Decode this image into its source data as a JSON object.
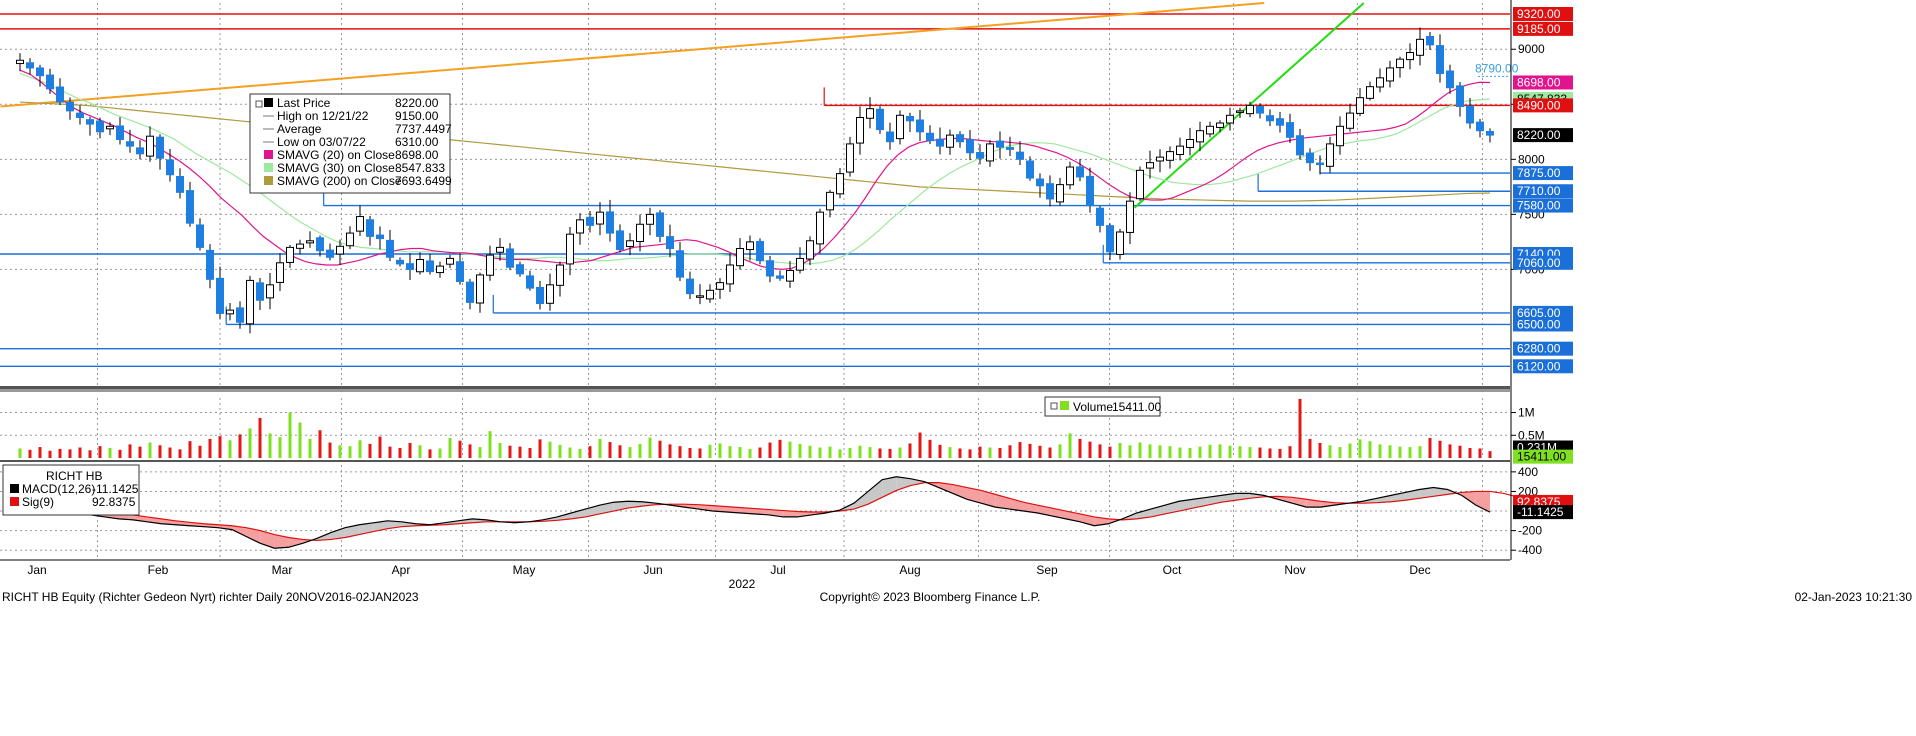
{
  "colors": {
    "up": "#000000",
    "down": "#1f7fe0",
    "sma20": "#e0148c",
    "sma30": "#9fe89f",
    "sma200": "#b09a40",
    "hline_red": "#e01010",
    "hline_blue": "#1a6fd8",
    "trend_orange": "#f4a020",
    "trend_green": "#22dd11",
    "vol_up": "#7ee020",
    "vol_down": "#e01818",
    "macd": "#000000",
    "sig": "#e01010",
    "hist_pos": "#c8c8c8",
    "hist_neg": "#f4a0a0"
  },
  "chart_data": [
    {
      "type": "candlestick",
      "panel": "price",
      "ylim": [
        5950,
        9420
      ],
      "y_ticks": [
        7000,
        7500,
        8000,
        8500,
        9000
      ],
      "y_tick_labels": [
        "7000",
        "7500",
        "8000",
        "8500",
        "9000"
      ],
      "price_tags": [
        {
          "label": "9320.00",
          "value": 9320,
          "color": "#e01010"
        },
        {
          "label": "9185.00",
          "value": 9185,
          "color": "#e01010"
        },
        {
          "label": "8698.00",
          "value": 8698,
          "color": "#e0148c"
        },
        {
          "label": "8547.833",
          "value": 8548,
          "color": "#9fe89f"
        },
        {
          "label": "8490.00",
          "value": 8490,
          "color": "#e01010"
        },
        {
          "label": "8220.00",
          "value": 8220,
          "color": "#000000"
        },
        {
          "label": "7875.00",
          "value": 7875,
          "color": "#1a6fd8"
        },
        {
          "label": "7710.00",
          "value": 7710,
          "color": "#1a6fd8"
        },
        {
          "label": "7580.00",
          "value": 7580,
          "color": "#1a6fd8"
        },
        {
          "label": "7140.00",
          "value": 7140,
          "color": "#1a6fd8"
        },
        {
          "label": "7060.00",
          "value": 7060,
          "color": "#1a6fd8"
        },
        {
          "label": "6605.00",
          "value": 6605,
          "color": "#1a6fd8"
        },
        {
          "label": "6500.00",
          "value": 6500,
          "color": "#1a6fd8"
        },
        {
          "label": "6280.00",
          "value": 6280,
          "color": "#1a6fd8"
        },
        {
          "label": "6120.00",
          "value": 6120,
          "color": "#1a6fd8"
        }
      ],
      "annotation": {
        "label": "8790.00",
        "value": 8790
      },
      "legend": [
        {
          "label": "Last Price",
          "value": "8220.00",
          "swatch": "#000000"
        },
        {
          "label": "High on 12/21/22",
          "value": "9150.00",
          "swatch": ""
        },
        {
          "label": "Average",
          "value": "7737.4497",
          "swatch": ""
        },
        {
          "label": "Low on 03/07/22",
          "value": "6310.00",
          "swatch": ""
        },
        {
          "label": "SMAVG (20)  on Close",
          "value": "8698.00",
          "swatch": "#e0148c"
        },
        {
          "label": "SMAVG (30)  on Close",
          "value": "8547.833",
          "swatch": "#9fe89f"
        },
        {
          "label": "SMAVG (200)  on Close",
          "value": "7693.6499",
          "swatch": "#b09a40"
        }
      ],
      "horizontal_lines": [
        {
          "value": 9320,
          "color": "#e01010",
          "from_month": 0
        },
        {
          "value": 9185,
          "color": "#e01010",
          "from_month": 0
        },
        {
          "value": 8490,
          "color": "#e01010",
          "from_month": 6.35
        },
        {
          "value": 7875,
          "color": "#1a6fd8",
          "from_month": 10.2
        },
        {
          "value": 7710,
          "color": "#1a6fd8",
          "from_month": 9.7
        },
        {
          "value": 7580,
          "color": "#1a6fd8",
          "from_month": 2.35
        },
        {
          "value": 7140,
          "color": "#1a6fd8",
          "from_month": 0
        },
        {
          "value": 7060,
          "color": "#1a6fd8",
          "from_month": 8.45
        },
        {
          "value": 6605,
          "color": "#1a6fd8",
          "from_month": 3.75
        },
        {
          "value": 6500,
          "color": "#1a6fd8",
          "from_month": 1.55
        },
        {
          "value": 6280,
          "color": "#1a6fd8",
          "from_month": 0
        },
        {
          "value": 6120,
          "color": "#1a6fd8",
          "from_month": 0
        }
      ],
      "trendlines": [
        {
          "from": [
            -0.3,
            8480
          ],
          "to": [
            9.75,
            9420
          ],
          "color": "#f4a020"
        },
        {
          "from": [
            8.7,
            7560
          ],
          "to": [
            10.55,
            9420
          ],
          "color": "#22dd11"
        }
      ],
      "closes": [
        8900,
        8830,
        8760,
        8640,
        8520,
        8440,
        8380,
        8320,
        8250,
        8300,
        8180,
        8120,
        8050,
        8210,
        8010,
        7860,
        7700,
        7420,
        7200,
        6910,
        6600,
        6630,
        6520,
        6900,
        6720,
        6860,
        7060,
        7200,
        7230,
        7260,
        7170,
        7110,
        7210,
        7330,
        7480,
        7300,
        7280,
        7110,
        7050,
        7000,
        7090,
        6980,
        7030,
        7100,
        6890,
        6700,
        6950,
        7130,
        7200,
        7020,
        6960,
        6830,
        6690,
        6860,
        7040,
        7320,
        7450,
        7400,
        7520,
        7330,
        7180,
        7260,
        7410,
        7500,
        7300,
        7190,
        6930,
        6780,
        6760,
        6810,
        6880,
        7040,
        7190,
        7250,
        7080,
        6940,
        6920,
        6990,
        7100,
        7260,
        7520,
        7700,
        7870,
        8140,
        8380,
        8460,
        8270,
        8160,
        8400,
        8350,
        8250,
        8170,
        8120,
        8220,
        8160,
        8060,
        8010,
        8140,
        8110,
        8090,
        8000,
        7830,
        7760,
        7640,
        7770,
        7930,
        7840,
        7580,
        7400,
        7160,
        7340,
        7620,
        7900,
        7970,
        8020,
        8070,
        8120,
        8180,
        8260,
        8300,
        8330,
        8400,
        8440,
        8490,
        8420,
        8350,
        8310,
        8200,
        8040,
        7970,
        7960,
        8140,
        8300,
        8420,
        8560,
        8660,
        8740,
        8830,
        8910,
        8970,
        9090,
        9040,
        8780,
        8650,
        8480,
        8330,
        8260,
        8220
      ],
      "sma20": [
        8810,
        8770,
        8700,
        8620,
        8540,
        8470,
        8420,
        8380,
        8340,
        8300,
        8250,
        8200,
        8160,
        8110,
        8050,
        7990,
        7920,
        7840,
        7750,
        7650,
        7570,
        7490,
        7390,
        7300,
        7230,
        7160,
        7110,
        7070,
        7050,
        7040,
        7040,
        7060,
        7080,
        7110,
        7140,
        7160,
        7180,
        7190,
        7190,
        7170,
        7160,
        7150,
        7150,
        7140,
        7120,
        7100,
        7090,
        7090,
        7090,
        7080,
        7070,
        7060,
        7060,
        7070,
        7080,
        7110,
        7140,
        7170,
        7200,
        7210,
        7220,
        7230,
        7260,
        7270,
        7260,
        7230,
        7200,
        7160,
        7110,
        7070,
        7030,
        7010,
        7000,
        7010,
        7050,
        7110,
        7190,
        7290,
        7400,
        7520,
        7660,
        7810,
        7940,
        8040,
        8110,
        8150,
        8170,
        8180,
        8190,
        8190,
        8180,
        8170,
        8160,
        8160,
        8150,
        8140,
        8120,
        8090,
        8060,
        8020,
        7970,
        7910,
        7840,
        7770,
        7710,
        7660,
        7640,
        7630,
        7630,
        7650,
        7690,
        7730,
        7770,
        7820,
        7880,
        7950,
        8020,
        8080,
        8120,
        8150,
        8170,
        8190,
        8200,
        8210,
        8220,
        8230,
        8240,
        8250,
        8260,
        8270,
        8290,
        8320,
        8380,
        8450,
        8530,
        8600,
        8650,
        8680,
        8700,
        8698
      ],
      "sma30": [
        8780,
        8740,
        8700,
        8650,
        8600,
        8550,
        8510,
        8460,
        8410,
        8370,
        8330,
        8290,
        8240,
        8190,
        8120,
        8050,
        7990,
        7930,
        7870,
        7800,
        7730,
        7650,
        7570,
        7490,
        7420,
        7360,
        7300,
        7250,
        7220,
        7200,
        7190,
        7180,
        7170,
        7160,
        7160,
        7160,
        7160,
        7150,
        7140,
        7130,
        7120,
        7110,
        7100,
        7100,
        7100,
        7110,
        7110,
        7100,
        7090,
        7080,
        7080,
        7090,
        7100,
        7100,
        7110,
        7120,
        7130,
        7140,
        7140,
        7140,
        7130,
        7120,
        7100,
        7080,
        7070,
        7060,
        7050,
        7050,
        7060,
        7080,
        7120,
        7180,
        7260,
        7350,
        7450,
        7540,
        7630,
        7720,
        7800,
        7870,
        7930,
        7980,
        8030,
        8080,
        8120,
        8140,
        8150,
        8150,
        8140,
        8110,
        8080,
        8050,
        8010,
        7970,
        7930,
        7890,
        7850,
        7820,
        7790,
        7780,
        7770,
        7770,
        7780,
        7800,
        7830,
        7860,
        7900,
        7940,
        7980,
        8020,
        8060,
        8100,
        8130,
        8150,
        8170,
        8180,
        8200,
        8230,
        8280,
        8340,
        8400,
        8460,
        8500,
        8530,
        8540,
        8548
      ],
      "sma200": [
        8520,
        8510,
        8500,
        8490,
        8470,
        8450,
        8430,
        8410,
        8390,
        8370,
        8350,
        8330,
        8310,
        8290,
        8270,
        8260,
        8240,
        8220,
        8200,
        8190,
        8170,
        8150,
        8130,
        8110,
        8090,
        8070,
        8050,
        8030,
        8010,
        7990,
        7970,
        7950,
        7930,
        7910,
        7890,
        7870,
        7850,
        7830,
        7810,
        7790,
        7770,
        7750,
        7740,
        7730,
        7720,
        7710,
        7700,
        7690,
        7680,
        7670,
        7660,
        7650,
        7640,
        7635,
        7630,
        7625,
        7620,
        7620,
        7620,
        7625,
        7630,
        7640,
        7650,
        7660,
        7670,
        7680,
        7690,
        7694
      ],
      "legend_position": "top-left"
    },
    {
      "type": "bar",
      "panel": "volume",
      "ylim": [
        0,
        1320000
      ],
      "y_ticks": [
        500000,
        1000000
      ],
      "y_tick_labels": [
        "0.5M",
        "1M"
      ],
      "price_tags": [
        {
          "label": "0.231M",
          "value": 231000,
          "color": "#000000"
        },
        {
          "label": "15411.00",
          "value": 30000,
          "color": "#7ee020"
        }
      ],
      "legend": [
        {
          "label": "Volume",
          "value": "15411.00",
          "swatch": "#7ee020"
        }
      ],
      "values": [
        210000,
        180000,
        240000,
        160000,
        200000,
        190000,
        230000,
        170000,
        260000,
        220000,
        180000,
        300000,
        250000,
        340000,
        280000,
        230000,
        190000,
        370000,
        270000,
        420000,
        480000,
        390000,
        520000,
        650000,
        880000,
        540000,
        460000,
        1000000,
        780000,
        420000,
        610000,
        340000,
        280000,
        260000,
        390000,
        310000,
        470000,
        250000,
        220000,
        330000,
        280000,
        190000,
        210000,
        440000,
        380000,
        300000,
        240000,
        590000,
        330000,
        270000,
        250000,
        220000,
        410000,
        360000,
        290000,
        230000,
        200000,
        260000,
        420000,
        350000,
        280000,
        240000,
        310000,
        450000,
        380000,
        300000,
        260000,
        220000,
        210000,
        290000,
        320000,
        260000,
        240000,
        200000,
        230000,
        340000,
        400000,
        360000,
        310000,
        270000,
        230000,
        250000,
        190000,
        220000,
        270000,
        240000,
        210000,
        200000,
        230000,
        320000,
        560000,
        400000,
        290000,
        240000,
        210000,
        190000,
        250000,
        230000,
        220000,
        280000,
        350000,
        310000,
        270000,
        230000,
        300000,
        540000,
        420000,
        360000,
        300000,
        250000,
        330000,
        280000,
        340000,
        300000,
        280000,
        260000,
        230000,
        220000,
        250000,
        290000,
        300000,
        270000,
        260000,
        240000,
        230000,
        210000,
        200000,
        260000,
        1300000,
        420000,
        330000,
        280000,
        240000,
        320000,
        410000,
        370000,
        300000,
        280000,
        250000,
        240000,
        260000,
        440000,
        380000,
        300000,
        270000,
        220000,
        210000,
        150000
      ],
      "legend_position": "top-center"
    },
    {
      "type": "line",
      "panel": "macd",
      "title": "RICHT HB",
      "ylim": [
        -500,
        470
      ],
      "y_ticks": [
        -400,
        -200,
        200,
        400
      ],
      "y_tick_labels": [
        "-400",
        "-200",
        "200",
        "400"
      ],
      "price_tags": [
        {
          "label": "92.8375",
          "value": 92.8,
          "color": "#e01010"
        },
        {
          "label": "-11.1425",
          "value": -11.1,
          "color": "#000000"
        }
      ],
      "legend": [
        {
          "label": "MACD(12,26)",
          "value": "-11.1425",
          "swatch": "#000000"
        },
        {
          "label": "Sig(9)",
          "value": "92.8375",
          "swatch": "#e01010"
        }
      ],
      "macd": [
        120,
        100,
        60,
        20,
        -10,
        -40,
        -60,
        -80,
        -90,
        -110,
        -130,
        -140,
        -150,
        -160,
        -170,
        -190,
        -260,
        -330,
        -380,
        -370,
        -330,
        -280,
        -220,
        -170,
        -140,
        -120,
        -100,
        -110,
        -130,
        -140,
        -120,
        -100,
        -80,
        -90,
        -110,
        -120,
        -110,
        -90,
        -60,
        -20,
        20,
        60,
        90,
        100,
        95,
        80,
        60,
        40,
        20,
        0,
        -10,
        -20,
        -30,
        -40,
        -60,
        -60,
        -40,
        -20,
        10,
        80,
        200,
        320,
        350,
        330,
        300,
        240,
        180,
        120,
        80,
        40,
        20,
        0,
        -20,
        -50,
        -80,
        -110,
        -150,
        -130,
        -80,
        -20,
        20,
        60,
        100,
        120,
        140,
        160,
        180,
        180,
        160,
        120,
        80,
        40,
        40,
        60,
        80,
        100,
        130,
        160,
        190,
        220,
        240,
        220,
        160,
        60,
        -11
      ],
      "signal": [
        100,
        95,
        80,
        60,
        40,
        20,
        0,
        -20,
        -40,
        -60,
        -80,
        -100,
        -115,
        -130,
        -140,
        -150,
        -170,
        -200,
        -240,
        -270,
        -290,
        -300,
        -290,
        -270,
        -240,
        -210,
        -180,
        -160,
        -150,
        -145,
        -140,
        -130,
        -120,
        -110,
        -110,
        -110,
        -110,
        -105,
        -95,
        -80,
        -60,
        -30,
        0,
        30,
        50,
        65,
        70,
        70,
        65,
        55,
        45,
        35,
        25,
        15,
        5,
        -5,
        -10,
        -10,
        0,
        20,
        70,
        140,
        210,
        260,
        290,
        290,
        270,
        240,
        210,
        170,
        130,
        90,
        60,
        30,
        0,
        -30,
        -60,
        -80,
        -90,
        -80,
        -60,
        -30,
        0,
        30,
        60,
        90,
        110,
        130,
        145,
        150,
        140,
        120,
        100,
        85,
        80,
        80,
        85,
        95,
        110,
        130,
        150,
        170,
        190,
        200,
        200,
        180,
        140,
        93
      ],
      "legend_position": "top-left"
    }
  ],
  "x_axis": {
    "months": [
      "Jan",
      "Feb",
      "Mar",
      "Apr",
      "May",
      "Jun",
      "Jul",
      "Aug",
      "Sep",
      "Oct",
      "Nov",
      "Dec"
    ],
    "year": "2022"
  },
  "footer": {
    "left": "RICHT HB Equity (Richter Gedeon Nyrt) richter  Daily 20NOV2016-02JAN2023",
    "center": "Copyright© 2023 Bloomberg Finance L.P.",
    "right": "02-Jan-2023 10:21:30"
  }
}
